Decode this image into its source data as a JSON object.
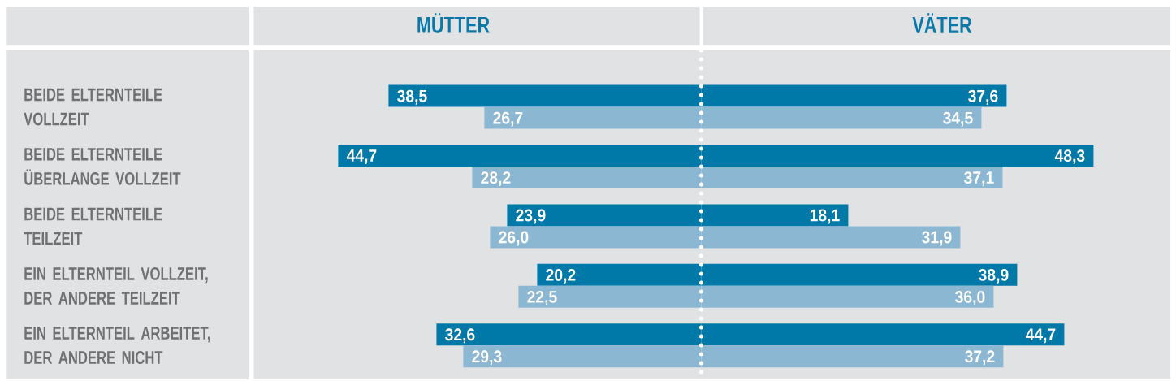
{
  "chart_data": [
    {
      "type": "bar",
      "orientation": "horizontal",
      "title": "MÜTTER",
      "categories": [
        "BEIDE ELTERNTEILE VOLLZEIT",
        "BEIDE ELTERNTEILE ÜBERLANGE VOLLZEIT",
        "BEIDE ELTERNTEILE TEILZEIT",
        "EIN ELTERNTEIL VOLLZEIT, DER ANDERE TEILZEIT",
        "EIN ELTERNTEIL ARBEITET, DER ANDERE NICHT"
      ],
      "series": [
        {
          "color": "#0079a8",
          "values": [
            38.5,
            44.7,
            23.9,
            20.2,
            32.6
          ],
          "value_labels": [
            "38,5",
            "44,7",
            "23,9",
            "20,2",
            "32,6"
          ]
        },
        {
          "color": "#8cb7d2",
          "values": [
            26.7,
            28.2,
            26.0,
            22.5,
            29.3
          ],
          "value_labels": [
            "26,7",
            "28,2",
            "26,0",
            "22,5",
            "29,3"
          ]
        }
      ],
      "xlim": [
        55,
        0
      ],
      "tick_labels": "y"
    },
    {
      "type": "bar",
      "orientation": "horizontal",
      "title": "VÄTER",
      "categories": [
        null,
        null,
        null,
        null,
        null
      ],
      "series": [
        {
          "color": "#0079a8",
          "values": [
            37.6,
            48.3,
            18.1,
            38.9,
            44.7
          ],
          "value_labels": [
            "37,6",
            "48,3",
            "18,1",
            "38,9",
            "44,7"
          ]
        },
        {
          "color": "#8cb7d2",
          "values": [
            34.5,
            37.1,
            31.9,
            36.0,
            37.2
          ],
          "value_labels": [
            "34,5",
            "37,1",
            "31,9",
            "36,0",
            "37,2"
          ]
        }
      ],
      "xlim": [
        0,
        58
      ]
    }
  ]
}
